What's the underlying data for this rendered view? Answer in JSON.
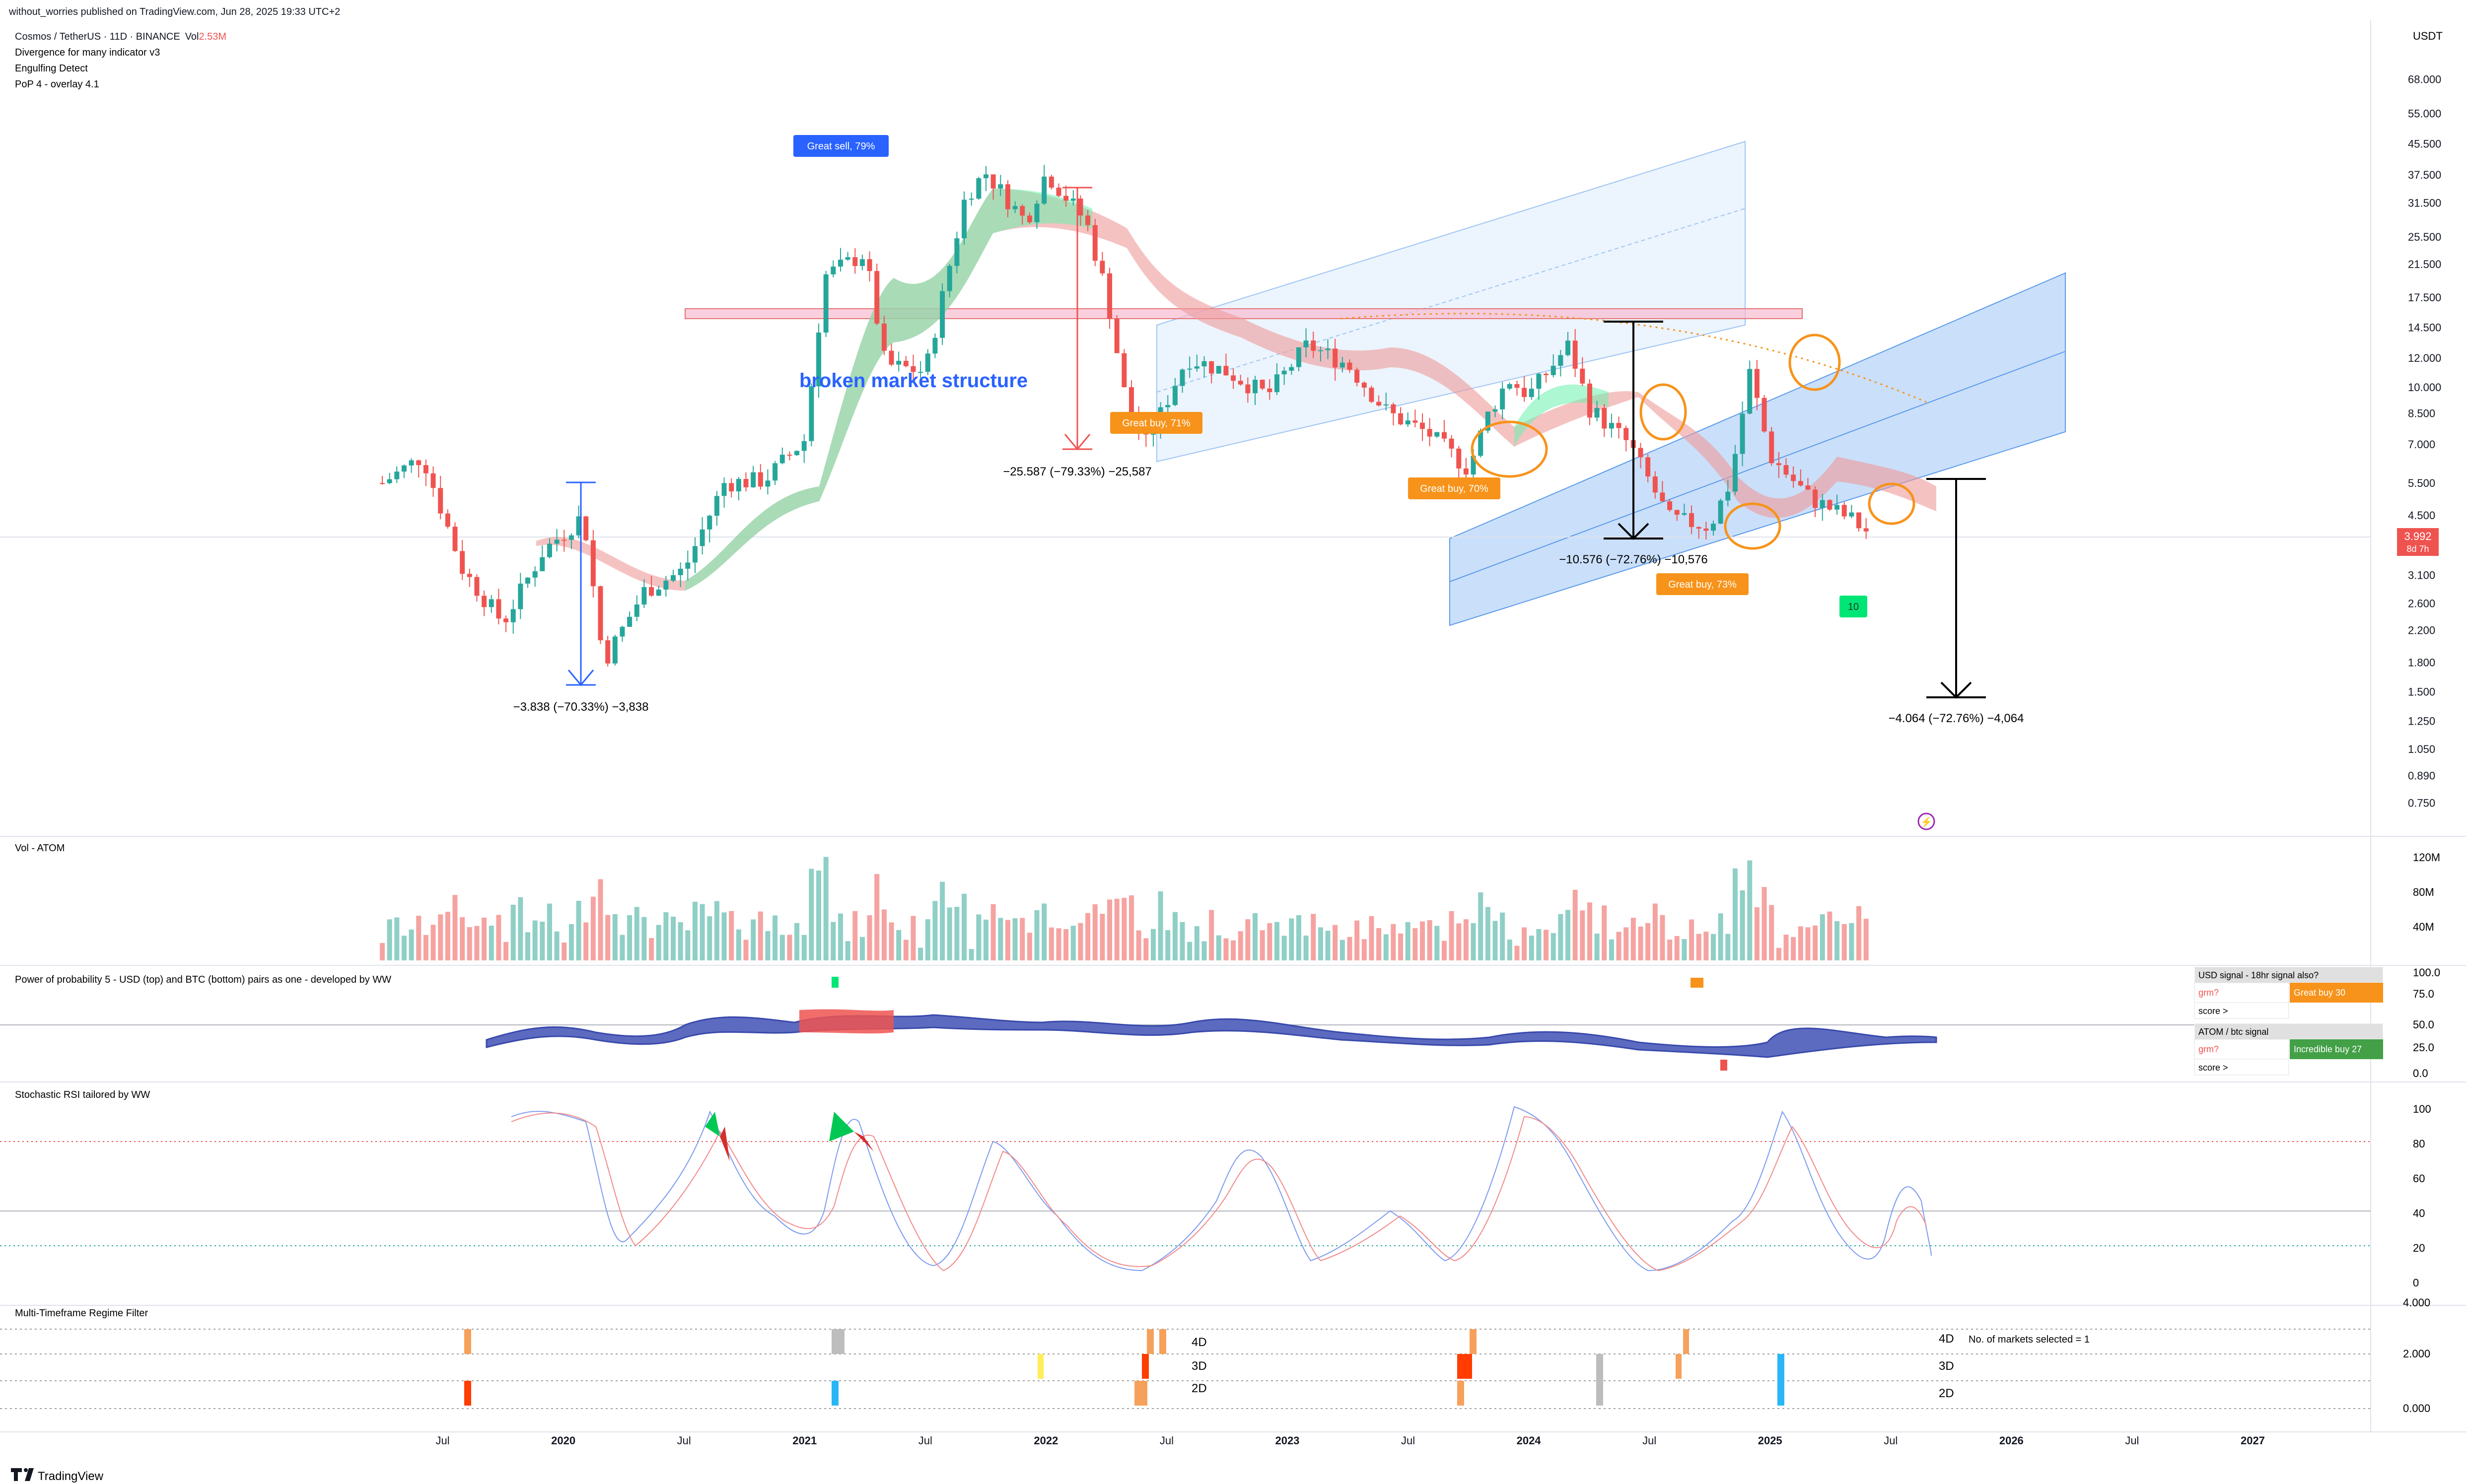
{
  "header": {
    "publisher": "without_worries published on TradingView.com, Jun 28, 2025 19:33 UTC+2",
    "symbol": "Cosmos / TetherUS · 11D · BINANCE",
    "vol_label": "Vol",
    "vol_value": "2.53M",
    "indicators": [
      "Divergence for many indicator v3",
      "Engulfing Detect",
      "PoP 4 - overlay 4.1"
    ],
    "currency": "USDT"
  },
  "colors": {
    "up": "#26a69a",
    "down": "#ef5350",
    "green_signal": "#00e676",
    "orange": "#f7931a",
    "blue": "#2962ff",
    "channel": "#9ec5f5"
  },
  "price_axis": [
    "68.000",
    "55.000",
    "45.500",
    "37.500",
    "31.500",
    "25.500",
    "21.500",
    "17.500",
    "14.500",
    "12.000",
    "10.000",
    "8.500",
    "7.000",
    "5.500",
    "4.500",
    "3.100",
    "2.600",
    "2.200",
    "1.800",
    "1.500",
    "1.250",
    "1.050",
    "0.890",
    "0.750"
  ],
  "price_badge": {
    "value": "3.992",
    "time": "8d 7h"
  },
  "time_axis": [
    "Jul",
    "2020",
    "Jul",
    "2021",
    "Jul",
    "2022",
    "Jul",
    "2023",
    "Jul",
    "2024",
    "Jul",
    "2025",
    "Jul",
    "2026",
    "Jul",
    "2027"
  ],
  "annotations": {
    "broken": "broken market structure",
    "great_sell": "Great sell, 79%",
    "great_buy_71": "Great buy, 71%",
    "great_buy_70": "Great buy, 70%",
    "great_buy_73": "Great buy, 73%",
    "m1": "−3.838 (−70.33%) −3,838",
    "m2": "−25.587 (−79.33%) −25,587",
    "m3": "−10.576 (−72.76%) −10,576",
    "m4": "−4.064 (−72.76%) −4,064",
    "ten": "10"
  },
  "volume_panel": {
    "title": "Vol - ATOM",
    "axis": [
      "120M",
      "80M",
      "40M"
    ]
  },
  "pop_panel": {
    "title": "Power of probability 5 - USD (top) and BTC (bottom) pairs as one - developed by WW",
    "axis": [
      "100.0",
      "75.0",
      "50.0",
      "25.0",
      "0.0"
    ],
    "table": {
      "usd_header": "USD signal - 18hr signal also?",
      "usd_row_label": "grm?",
      "usd_signal": "Great buy 30",
      "usd_score": "score >",
      "btc_header": "ATOM / btc signal",
      "btc_row_label": "grm?",
      "btc_signal": "Incredible buy 27",
      "btc_score": "score >"
    }
  },
  "stoch_panel": {
    "title": "Stochastic RSI tailored by WW",
    "axis": [
      "100",
      "80",
      "60",
      "40",
      "20",
      "0"
    ]
  },
  "regime_panel": {
    "title": "Multi-Timeframe Regime Filter",
    "axis": [
      "4.000",
      "2.000",
      "0.000"
    ],
    "labels": [
      "4D",
      "3D",
      "2D"
    ],
    "markets_note": "No. of markets selected = 1"
  },
  "footer": {
    "brand": "TradingView"
  },
  "chart_data": {
    "type": "candlestick",
    "title": "Cosmos / TetherUS · 11D · BINANCE",
    "ylabel": "USDT",
    "yscale": "log",
    "ylim": [
      0.7,
      75
    ],
    "x_range": [
      "2019-04",
      "2027-06"
    ],
    "approx_close_path": [
      {
        "date": "2019-04",
        "price": 5.5
      },
      {
        "date": "2019-06",
        "price": 6.5
      },
      {
        "date": "2019-08",
        "price": 3.2
      },
      {
        "date": "2019-10",
        "price": 2.3
      },
      {
        "date": "2019-12",
        "price": 3.6
      },
      {
        "date": "2020-02",
        "price": 4.5
      },
      {
        "date": "2020-03",
        "price": 1.8
      },
      {
        "date": "2020-05",
        "price": 2.8
      },
      {
        "date": "2020-07",
        "price": 3.2
      },
      {
        "date": "2020-09",
        "price": 5.5
      },
      {
        "date": "2020-11",
        "price": 5.6
      },
      {
        "date": "2021-01",
        "price": 7.2
      },
      {
        "date": "2021-02",
        "price": 20.0
      },
      {
        "date": "2021-04",
        "price": 23.0
      },
      {
        "date": "2021-05",
        "price": 11.5
      },
      {
        "date": "2021-07",
        "price": 11.0
      },
      {
        "date": "2021-09",
        "price": 33.0
      },
      {
        "date": "2021-10",
        "price": 38.0
      },
      {
        "date": "2021-12",
        "price": 28.0
      },
      {
        "date": "2022-01",
        "price": 38.0
      },
      {
        "date": "2022-03",
        "price": 28.0
      },
      {
        "date": "2022-04",
        "price": 18.0
      },
      {
        "date": "2022-05",
        "price": 9.0
      },
      {
        "date": "2022-06",
        "price": 7.0
      },
      {
        "date": "2022-08",
        "price": 12.0
      },
      {
        "date": "2022-10",
        "price": 11.0
      },
      {
        "date": "2022-12",
        "price": 9.5
      },
      {
        "date": "2023-02",
        "price": 13.0
      },
      {
        "date": "2023-04",
        "price": 11.5
      },
      {
        "date": "2023-06",
        "price": 8.5
      },
      {
        "date": "2023-08",
        "price": 7.5
      },
      {
        "date": "2023-10",
        "price": 6.0
      },
      {
        "date": "2023-11",
        "price": 8.5
      },
      {
        "date": "2023-12",
        "price": 10.5
      },
      {
        "date": "2024-01",
        "price": 9.5
      },
      {
        "date": "2024-03",
        "price": 13.0
      },
      {
        "date": "2024-04",
        "price": 8.8
      },
      {
        "date": "2024-06",
        "price": 7.0
      },
      {
        "date": "2024-08",
        "price": 4.4
      },
      {
        "date": "2024-10",
        "price": 4.2
      },
      {
        "date": "2024-11",
        "price": 5.5
      },
      {
        "date": "2024-12",
        "price": 11.0
      },
      {
        "date": "2025-01",
        "price": 6.5
      },
      {
        "date": "2025-03",
        "price": 5.0
      },
      {
        "date": "2025-05",
        "price": 4.4
      },
      {
        "date": "2025-06",
        "price": 3.99
      }
    ],
    "measurements": [
      {
        "label": "−3.838 (−70.33%)",
        "from": 5.46,
        "to": 1.62
      },
      {
        "label": "−25.587 (−79.33%)",
        "from": 32.2,
        "to": 6.6
      },
      {
        "label": "−10.576 (−72.76%)",
        "from": 14.5,
        "to": 3.95
      },
      {
        "label": "−4.064 (−72.76%)",
        "from": 5.58,
        "to": 1.52
      }
    ],
    "volume_axis": [
      "40M",
      "80M",
      "120M"
    ],
    "legend": "none",
    "grid": false
  }
}
